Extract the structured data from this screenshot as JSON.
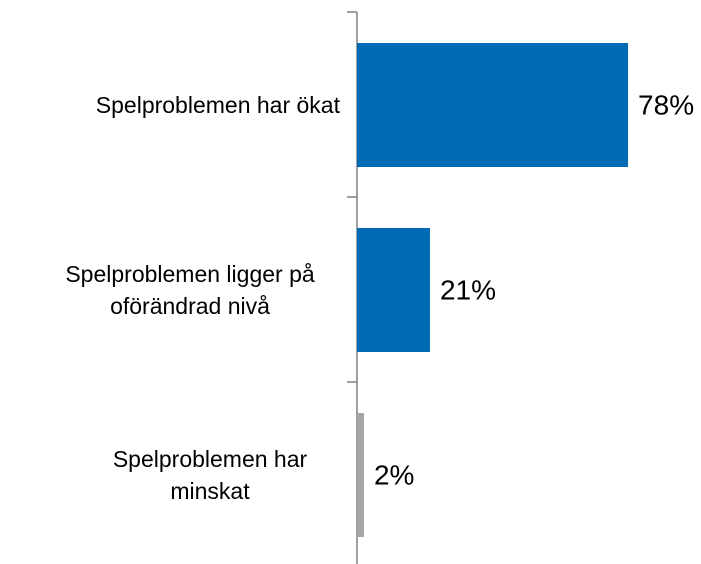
{
  "chart_data": {
    "type": "bar",
    "orientation": "horizontal",
    "categories": [
      "Spelproblemen har ökat",
      "Spelproblemen ligger på oförändrad nivå",
      "Spelproblemen har minskat"
    ],
    "values": [
      78,
      21,
      2
    ],
    "value_labels": [
      "78%",
      "21%",
      "2%"
    ],
    "colors": [
      "#006ab4",
      "#006ab4",
      "#a6a6a6"
    ]
  }
}
